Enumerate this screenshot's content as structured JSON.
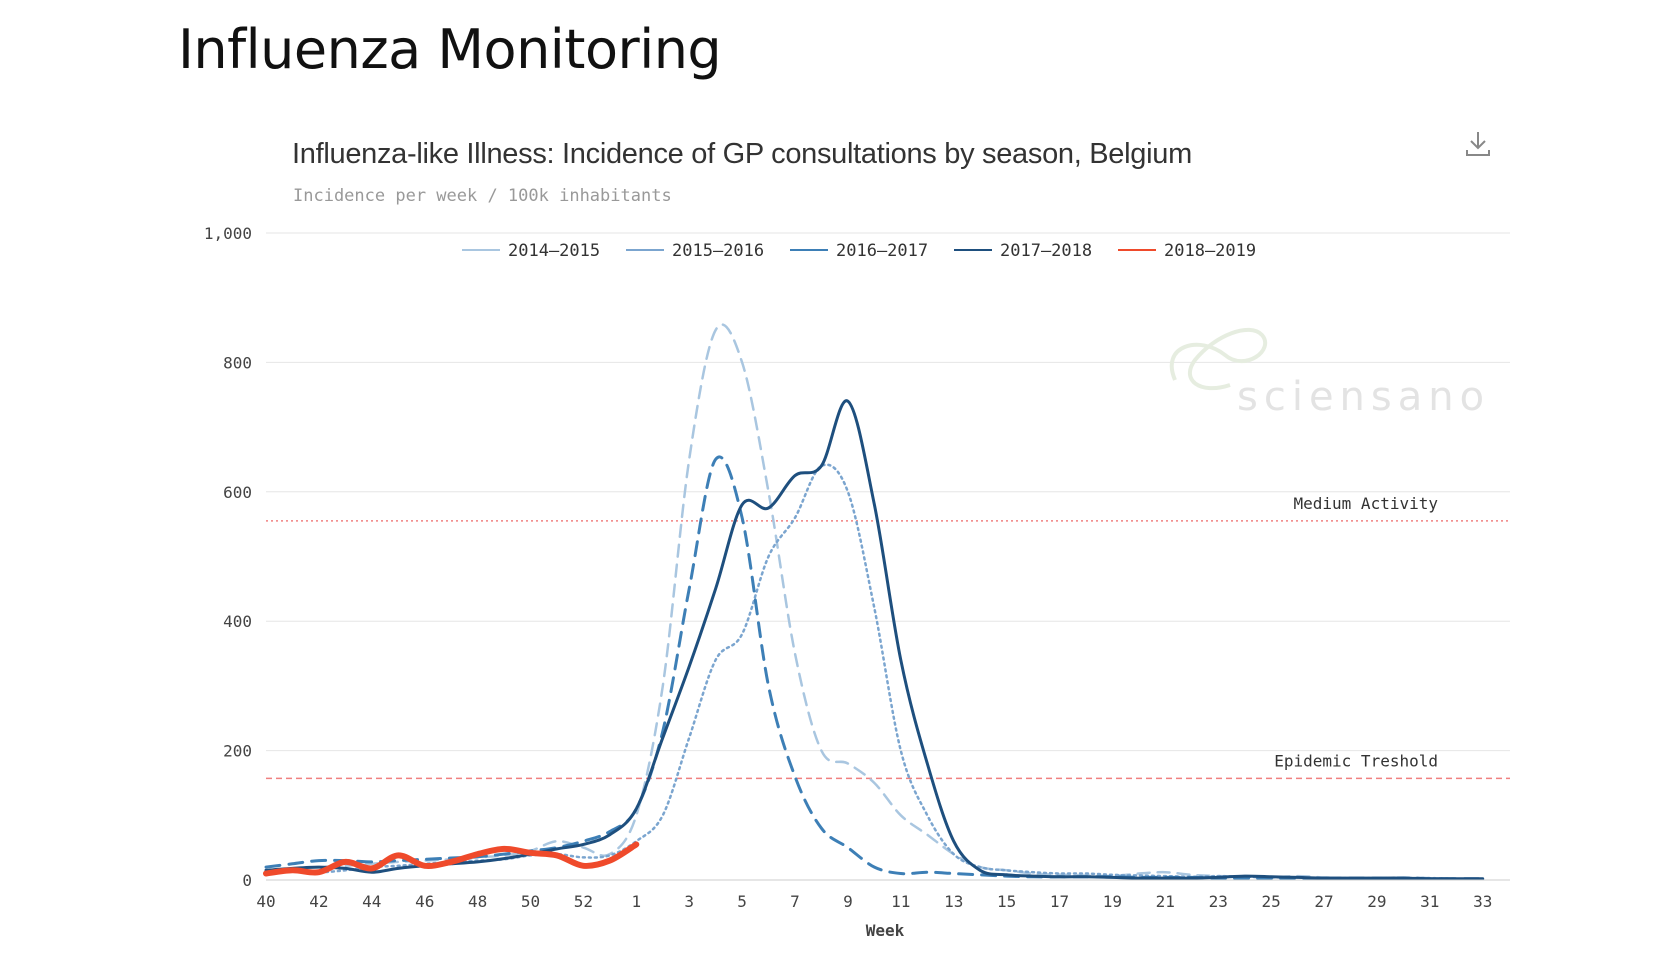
{
  "page": {
    "title": "Influenza Monitoring"
  },
  "chart": {
    "title": "Influenza-like Illness: Incidence of GP consultations by season, Belgium",
    "subtitle": "Incidence per week / 100k inhabitants",
    "download_icon": "download-icon",
    "watermark": "sciensano"
  },
  "colors": {
    "s2014": "#a9c6e0",
    "s2015": "#7ba5cf",
    "s2016": "#3d7fb6",
    "s2017": "#1e4f7e",
    "s2018": "#ef4a2b",
    "threshold": "#f08080",
    "grid": "#e6e6e6",
    "axis_text": "#444444"
  },
  "chart_data": {
    "type": "line",
    "title": "Influenza-like Illness: Incidence of GP consultations by season, Belgium",
    "subtitle": "Incidence per week / 100k inhabitants",
    "xlabel": "Week",
    "ylabel": "",
    "ylim": [
      0,
      1000
    ],
    "yticks": [
      "0",
      "200",
      "400",
      "600",
      "800",
      "1,000"
    ],
    "x_ticks": [
      "40",
      "42",
      "44",
      "46",
      "48",
      "50",
      "52",
      "1",
      "3",
      "5",
      "7",
      "9",
      "11",
      "13",
      "15",
      "17",
      "19",
      "21",
      "23",
      "25",
      "27",
      "29",
      "31",
      "33"
    ],
    "weeks": [
      "40",
      "41",
      "42",
      "43",
      "44",
      "45",
      "46",
      "47",
      "48",
      "49",
      "50",
      "51",
      "52",
      "1",
      "2",
      "3",
      "4",
      "5",
      "6",
      "7",
      "8",
      "9",
      "10",
      "11",
      "12",
      "13",
      "14",
      "15",
      "16",
      "17",
      "18",
      "19",
      "20",
      "21",
      "22",
      "23",
      "24",
      "25",
      "26",
      "27",
      "28",
      "29",
      "30",
      "31",
      "32",
      "33",
      "34"
    ],
    "legend_position": "top",
    "grid": true,
    "thresholds": [
      {
        "label": "Medium Activity",
        "value": 555,
        "style": "dotted"
      },
      {
        "label": "Epidemic Treshold",
        "value": 157,
        "style": "dashed"
      }
    ],
    "series": [
      {
        "name": "2014–2015",
        "dash": "dash",
        "values": [
          15,
          18,
          20,
          22,
          25,
          28,
          30,
          32,
          35,
          38,
          45,
          60,
          50,
          40,
          100,
          300,
          650,
          850,
          800,
          600,
          350,
          200,
          180,
          150,
          100,
          70,
          40,
          20,
          15,
          10,
          8,
          7,
          6,
          10,
          12,
          8,
          6,
          5,
          4,
          6,
          4,
          3,
          3,
          4,
          3,
          2,
          2
        ]
      },
      {
        "name": "2015–2016",
        "dash": "dot",
        "values": [
          15,
          15,
          12,
          15,
          20,
          22,
          25,
          28,
          30,
          32,
          38,
          40,
          35,
          38,
          60,
          100,
          220,
          340,
          380,
          500,
          560,
          640,
          600,
          420,
          200,
          100,
          40,
          20,
          15,
          12,
          10,
          10,
          8,
          7,
          6,
          5,
          6,
          5,
          4,
          4,
          3,
          3,
          3,
          3,
          3,
          2,
          2
        ]
      },
      {
        "name": "2016–2017",
        "dash": "longdash",
        "values": [
          20,
          25,
          30,
          30,
          28,
          30,
          32,
          34,
          36,
          40,
          45,
          50,
          60,
          75,
          110,
          230,
          450,
          650,
          560,
          300,
          160,
          80,
          50,
          20,
          10,
          12,
          10,
          8,
          6,
          5,
          5,
          5,
          5,
          4,
          4,
          4,
          3,
          3,
          3,
          3,
          3,
          3,
          3,
          2,
          2,
          2,
          2
        ]
      },
      {
        "name": "2017–2018",
        "dash": "solid",
        "values": [
          15,
          18,
          20,
          18,
          12,
          18,
          22,
          25,
          28,
          33,
          40,
          48,
          55,
          70,
          110,
          220,
          330,
          450,
          580,
          575,
          625,
          640,
          740,
          580,
          340,
          180,
          60,
          15,
          8,
          6,
          5,
          5,
          4,
          3,
          3,
          3,
          4,
          6,
          5,
          4,
          3,
          3,
          3,
          3,
          2,
          2,
          2
        ]
      },
      {
        "name": "2018–2019",
        "dash": "solid",
        "values": [
          10,
          15,
          12,
          28,
          18,
          38,
          22,
          28,
          40,
          48,
          42,
          38,
          22,
          30,
          55
        ]
      }
    ]
  }
}
